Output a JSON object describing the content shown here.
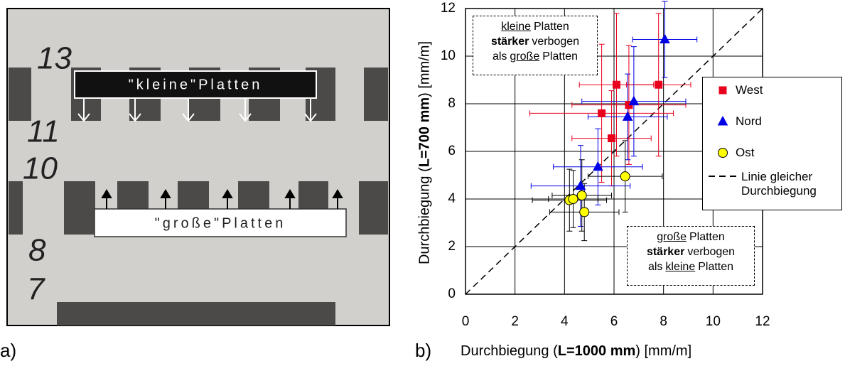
{
  "photo": {
    "floor_numbers": [
      "13",
      "11",
      "10",
      "8",
      "7"
    ],
    "banner_top": "\"kleine\"Platten",
    "banner_bottom": "\"große\"Platten",
    "panel_label": "a)"
  },
  "chart_data": {
    "type": "scatter",
    "panel_label": "b)",
    "x_label": [
      {
        "text": "Durchbiegung (",
        "style": "normal"
      },
      {
        "text": "L=1000 mm",
        "style": "bold"
      },
      {
        "text": ") [mm/m]",
        "style": "normal"
      }
    ],
    "y_label": [
      {
        "text": "Durchbiegung (",
        "style": "normal"
      },
      {
        "text": "L=700 mm",
        "style": "bold"
      },
      {
        "text": ") [mm/m]",
        "style": "normal"
      }
    ],
    "xlim": [
      0,
      12
    ],
    "ylim": [
      0,
      12
    ],
    "xticks": [
      0,
      2,
      4,
      6,
      8,
      10,
      12
    ],
    "yticks": [
      0,
      2,
      4,
      6,
      8,
      10,
      12
    ],
    "grid": true,
    "series": [
      {
        "name": "West",
        "color": "#e8001c",
        "error_color": "#e8001c",
        "marker": "square",
        "x": [
          6.1,
          7.8,
          6.6,
          5.5,
          5.9
        ],
        "y": [
          8.8,
          8.8,
          7.95,
          7.6,
          6.55
        ],
        "xerr": [
          1.5,
          1.3,
          2.3,
          2.9,
          1.6
        ],
        "yerr": [
          3.0,
          3.0,
          2.5,
          2.9,
          2.0
        ]
      },
      {
        "name": "Nord",
        "color": "#0000e6",
        "error_color": "#0000e6",
        "marker": "triangle",
        "x": [
          8.05,
          6.8,
          6.55,
          5.35,
          4.65
        ],
        "y": [
          10.7,
          8.1,
          7.45,
          5.35,
          4.55
        ],
        "xerr": [
          1.3,
          2.1,
          1.6,
          1.8,
          2.0
        ],
        "yerr": [
          1.6,
          2.3,
          1.8,
          1.6,
          1.7
        ]
      },
      {
        "name": "Ost",
        "color": "#ffff00",
        "error_color": "#000000",
        "marker": "circle",
        "x": [
          6.45,
          4.7,
          4.2,
          4.35,
          4.8
        ],
        "y": [
          4.95,
          4.15,
          3.95,
          4.0,
          3.45
        ],
        "xerr": [
          1.5,
          1.2,
          1.5,
          1.0,
          1.4
        ],
        "yerr": [
          1.5,
          1.5,
          1.3,
          1.2,
          1.2
        ]
      }
    ],
    "reference_line": {
      "name": "Linie gleicher Durchbiegung"
    },
    "annotations": [
      {
        "lines": [
          [
            {
              "text": "kleine",
              "style": "underline"
            },
            {
              "text": "Platten",
              "style": "normal"
            }
          ],
          [
            {
              "text": "stärker",
              "style": "bold"
            },
            {
              "text": "verbogen",
              "style": "normal"
            }
          ],
          [
            {
              "text": "als",
              "style": "normal"
            },
            {
              "text": "große",
              "style": "underline"
            },
            {
              "text": "Platten",
              "style": "normal"
            }
          ]
        ]
      },
      {
        "lines": [
          [
            {
              "text": "große",
              "style": "underline"
            },
            {
              "text": "Platten",
              "style": "normal"
            }
          ],
          [
            {
              "text": "stärker",
              "style": "bold"
            },
            {
              "text": "verbogen",
              "style": "normal"
            }
          ],
          [
            {
              "text": "als",
              "style": "normal"
            },
            {
              "text": "kleine",
              "style": "underline"
            },
            {
              "text": "Platten",
              "style": "normal"
            }
          ]
        ]
      }
    ]
  }
}
